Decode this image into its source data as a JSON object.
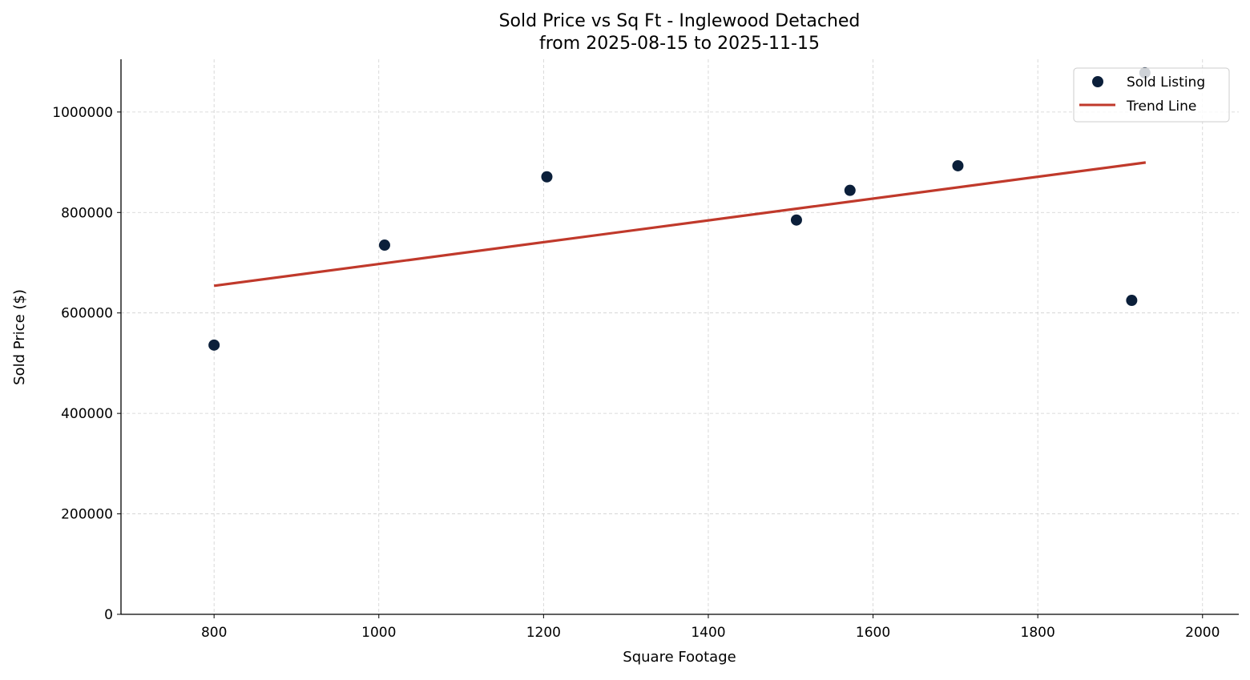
{
  "chart_data": {
    "type": "scatter",
    "title": "Sold Price vs Sq Ft - Inglewood Detached",
    "subtitle": "from 2025-08-15 to 2025-11-15",
    "xlabel": "Square Footage",
    "ylabel": "Sold Price ($)",
    "xlim": [
      687,
      2044
    ],
    "ylim": [
      0,
      1105000
    ],
    "xticks": [
      800,
      1000,
      1200,
      1400,
      1600,
      1800,
      2000
    ],
    "yticks": [
      0,
      200000,
      400000,
      600000,
      800000,
      1000000
    ],
    "grid": true,
    "legend_position": "top-right",
    "series": [
      {
        "name": "Sold Listing",
        "type": "scatter",
        "color": "#0b1f3a",
        "points": [
          {
            "x": 800,
            "y": 536000
          },
          {
            "x": 1007,
            "y": 735000
          },
          {
            "x": 1204,
            "y": 871000
          },
          {
            "x": 1507,
            "y": 785000
          },
          {
            "x": 1572,
            "y": 844000
          },
          {
            "x": 1703,
            "y": 893000
          },
          {
            "x": 1914,
            "y": 625000
          },
          {
            "x": 1930,
            "y": 1078000
          }
        ]
      },
      {
        "name": "Trend Line",
        "type": "line",
        "color": "#c0392b",
        "points": [
          {
            "x": 800,
            "y": 654000
          },
          {
            "x": 1931,
            "y": 899500
          }
        ]
      }
    ]
  }
}
